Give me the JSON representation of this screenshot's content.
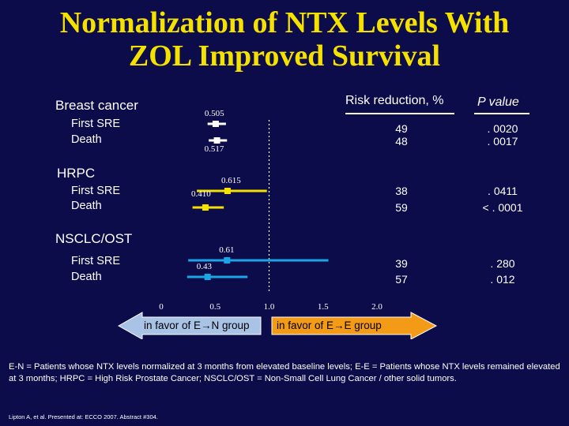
{
  "title": {
    "line1": "Normalization of NTX Levels With",
    "line2": "ZOL Improved Survival"
  },
  "columns": {
    "risk_reduction": "Risk reduction, %",
    "p_value": "P value"
  },
  "groups": [
    {
      "name": "Breast cancer",
      "rows": [
        {
          "label": "First SRE",
          "risk_reduction": "49",
          "p_value": ". 0020"
        },
        {
          "label": "Death",
          "risk_reduction": "48",
          "p_value": ". 0017"
        }
      ]
    },
    {
      "name": "HRPC",
      "rows": [
        {
          "label": "First SRE",
          "risk_reduction": "38",
          "p_value": ". 0411"
        },
        {
          "label": "Death",
          "risk_reduction": "59",
          "p_value": "< . 0001"
        }
      ]
    },
    {
      "name": "NSCLC/OST",
      "rows": [
        {
          "label": "First SRE",
          "risk_reduction": "39",
          "p_value": ". 280"
        },
        {
          "label": "Death",
          "risk_reduction": "57",
          "p_value": ". 012"
        }
      ]
    }
  ],
  "arrows": {
    "left": "in favor of E→N group",
    "right": "in favor of E→E group",
    "left_color": "#a9c3e6",
    "right_color": "#f39a17"
  },
  "footnote": "E-N = Patients whose NTX levels normalized at 3 months from elevated baseline levels; E-E = Patients whose NTX levels remained elevated at 3 months; HRPC = High Risk Prostate Cancer; NSCLC/OST = Non-Small Cell Lung Cancer / other solid tumors.",
  "citation": "Lipton A, et al. Presented at: ECCO 2007. Abstract #304.",
  "chart_data": {
    "type": "forest",
    "xlim": [
      0,
      2.0
    ],
    "x_ticks": [
      "0",
      "0.5",
      "1.0",
      "1.5",
      "2.0"
    ],
    "tick_values": [
      0,
      0.5,
      1.0,
      1.5,
      2.0
    ],
    "reference_line": 1.0,
    "series": [
      {
        "group": "Breast cancer",
        "label": "First SRE",
        "estimate": 0.505,
        "estimate_label": "0.505",
        "ci": [
          0.43,
          0.6
        ],
        "color": "#ffffff"
      },
      {
        "group": "Breast cancer",
        "label": "Death",
        "estimate": 0.517,
        "estimate_label": "0.517",
        "ci": [
          0.44,
          0.61
        ],
        "color": "#ffffff"
      },
      {
        "group": "HRPC",
        "label": "First SRE",
        "estimate": 0.615,
        "estimate_label": "0.615",
        "ci": [
          0.33,
          0.98
        ],
        "color": "#f5e100"
      },
      {
        "group": "HRPC",
        "label": "Death",
        "estimate": 0.41,
        "estimate_label": "0.410",
        "ci": [
          0.29,
          0.58
        ],
        "color": "#f5e100"
      },
      {
        "group": "NSCLC/OST",
        "label": "First SRE",
        "estimate": 0.61,
        "estimate_label": "0.61",
        "ci": [
          0.25,
          1.55
        ],
        "color": "#1aa6e6"
      },
      {
        "group": "NSCLC/OST",
        "label": "Death",
        "estimate": 0.43,
        "estimate_label": "0.43",
        "ci": [
          0.24,
          0.8
        ],
        "color": "#1aa6e6"
      }
    ]
  }
}
